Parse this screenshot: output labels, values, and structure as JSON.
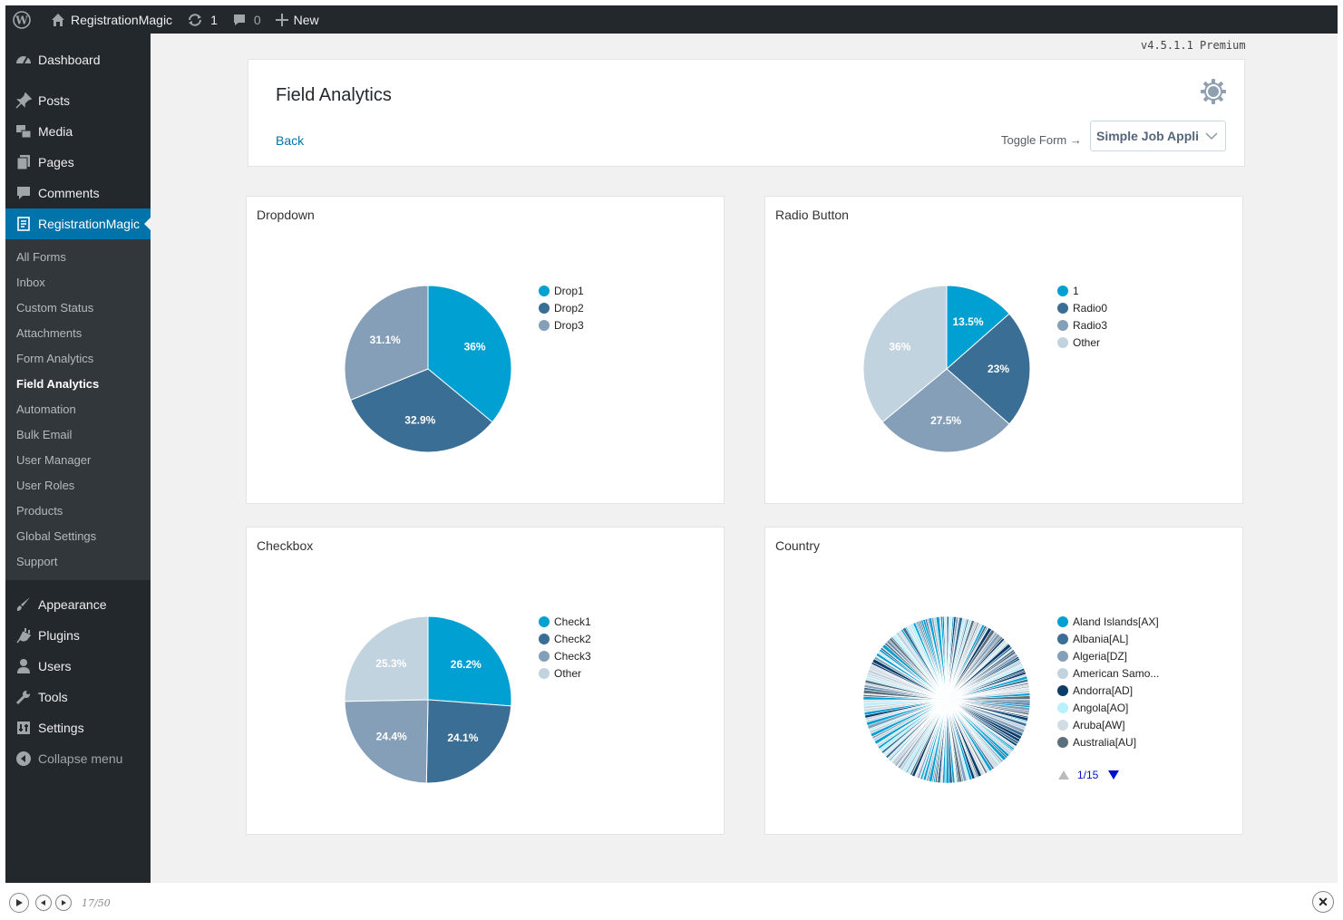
{
  "adminbar": {
    "site_name": "RegistrationMagic",
    "updates_count": "1",
    "comments_count": "0",
    "new_label": "New"
  },
  "sidebar": {
    "top_items": [
      {
        "label": "Dashboard",
        "icon": "dashboard-icon"
      },
      {
        "label": "Posts",
        "icon": "pin-icon"
      },
      {
        "label": "Media",
        "icon": "media-icon"
      },
      {
        "label": "Pages",
        "icon": "pages-icon"
      },
      {
        "label": "Comments",
        "icon": "comment-icon"
      },
      {
        "label": "RegistrationMagic",
        "icon": "form-icon"
      }
    ],
    "submenu": [
      "All Forms",
      "Inbox",
      "Custom Status",
      "Attachments",
      "Form Analytics",
      "Field Analytics",
      "Automation",
      "Bulk Email",
      "User Manager",
      "User Roles",
      "Products",
      "Global Settings",
      "Support"
    ],
    "bottom_items": [
      {
        "label": "Appearance",
        "icon": "brush-icon"
      },
      {
        "label": "Plugins",
        "icon": "plugin-icon"
      },
      {
        "label": "Users",
        "icon": "user-icon"
      },
      {
        "label": "Tools",
        "icon": "wrench-icon"
      },
      {
        "label": "Settings",
        "icon": "settings-icon"
      }
    ],
    "collapse_label": "Collapse menu"
  },
  "version": "v4.5.1.1 Premium",
  "header": {
    "title": "Field Analytics",
    "back_label": "Back",
    "toggle_label": "Toggle Form →",
    "form_select_value": "Simple Job Application"
  },
  "colors": {
    "c1": "#00a0d2",
    "c2": "#3b6e94",
    "c3": "#859fb8",
    "c4": "#c2d3e0",
    "accent": "#0073aa"
  },
  "chart_data": [
    {
      "type": "pie",
      "title": "Dropdown",
      "categories": [
        "Drop1",
        "Drop2",
        "Drop3"
      ],
      "values": [
        36,
        32.9,
        31.1
      ],
      "labels": [
        "36%",
        "32.9%",
        "31.1%"
      ]
    },
    {
      "type": "pie",
      "title": "Radio Button",
      "categories": [
        "1",
        "Radio0",
        "Radio3",
        "Other"
      ],
      "values": [
        13.5,
        23,
        27.5,
        36
      ],
      "labels": [
        "13.5%",
        "23%",
        "27.5%",
        "36%"
      ]
    },
    {
      "type": "pie",
      "title": "Checkbox",
      "categories": [
        "Check1",
        "Check2",
        "Check3",
        "Other"
      ],
      "values": [
        26.2,
        24.1,
        24.4,
        25.3
      ],
      "labels": [
        "26.2%",
        "24.1%",
        "24.4%",
        "25.3%"
      ]
    },
    {
      "type": "pie",
      "title": "Country",
      "categories": [
        "Aland Islands[AX]",
        "Albania[AL]",
        "Algeria[DZ]",
        "American Samo...",
        "Andorra[AD]",
        "Angola[AO]",
        "Aruba[AW]",
        "Australia[AU]"
      ],
      "legend_colors": [
        "#00a0d2",
        "#3b6e94",
        "#859fb8",
        "#c2d3e0",
        "#0b3c6a",
        "#b9f0fb",
        "#d3dbe3",
        "#5b6f7c"
      ],
      "legend_page": "1/15"
    }
  ],
  "player": {
    "slide_count": "17/50"
  }
}
